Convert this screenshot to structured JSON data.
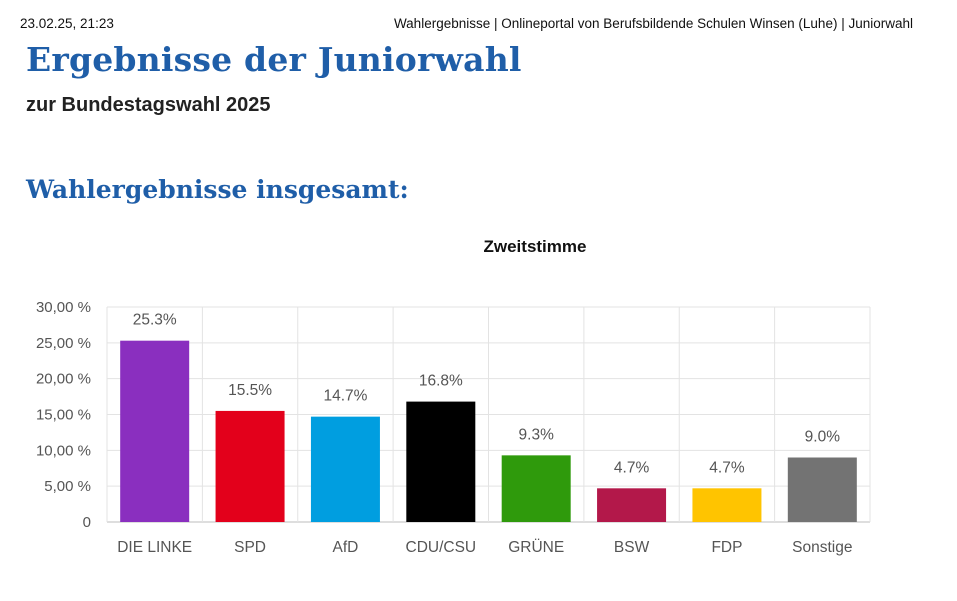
{
  "header": {
    "date": "23.02.25, 21:23",
    "title": "Wahlergebnisse | Onlineportal von Berufsbildende Schulen Winsen (Luhe) | Juniorwahl"
  },
  "page": {
    "heading": "Ergebnisse der Juniorwahl",
    "subheading": "zur Bundestagswahl 2025",
    "section_heading": "Wahlergebnisse insgesamt:"
  },
  "chart_data": {
    "type": "bar",
    "title": "Zweitstimme",
    "xlabel": "",
    "ylabel": "",
    "ylim": [
      0,
      30
    ],
    "yticks": [
      {
        "value": 0,
        "label": "0"
      },
      {
        "value": 5,
        "label": "5,00 %"
      },
      {
        "value": 10,
        "label": "10,00 %"
      },
      {
        "value": 15,
        "label": "15,00 %"
      },
      {
        "value": 20,
        "label": "20,00 %"
      },
      {
        "value": 25,
        "label": "25,00 %"
      },
      {
        "value": 30,
        "label": "30,00 %"
      }
    ],
    "categories": [
      "DIE LINKE",
      "SPD",
      "AfD",
      "CDU/CSU",
      "GRÜNE",
      "BSW",
      "FDP",
      "Sonstige"
    ],
    "values": [
      25.3,
      15.5,
      14.7,
      16.8,
      9.3,
      4.7,
      4.7,
      9.0
    ],
    "data_labels": [
      "25.3%",
      "15.5%",
      "14.7%",
      "16.8%",
      "9.3%",
      "4.7%",
      "4.7%",
      "9.0%"
    ],
    "colors": [
      "#8a2fbf",
      "#e3001b",
      "#009ee0",
      "#000000",
      "#2f9a0c",
      "#b3184a",
      "#ffc400",
      "#737373"
    ],
    "grid": true,
    "legend": "none"
  }
}
